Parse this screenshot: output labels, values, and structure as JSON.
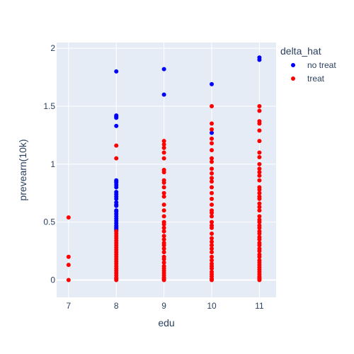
{
  "chart_data": {
    "type": "scatter",
    "title": "",
    "xlabel": "edu",
    "ylabel": "prevearn(10k)",
    "xlim": [
      6.75,
      11.35
    ],
    "ylim": [
      -0.15,
      2.05
    ],
    "x_ticks": [
      "7",
      "8",
      "9",
      "10",
      "11"
    ],
    "y_ticks": [
      "0",
      "0.5",
      "1",
      "1.5",
      "2"
    ],
    "grid": true,
    "legend": {
      "title": "delta_hat",
      "placement": "top-right outside"
    },
    "series": [
      {
        "name": "no treat",
        "color": "#0000ff",
        "x": [
          8,
          8,
          8,
          8,
          8,
          8,
          8,
          8,
          8,
          8,
          8,
          8,
          8,
          8,
          8,
          8,
          8,
          8,
          8,
          8,
          8,
          8,
          8,
          8,
          8,
          8,
          8,
          8,
          8,
          9,
          9,
          10,
          10,
          11,
          11
        ],
        "y": [
          1.8,
          1.42,
          1.41,
          1.4,
          1.33,
          0.86,
          0.85,
          0.84,
          0.82,
          0.8,
          0.76,
          0.74,
          0.72,
          0.7,
          0.67,
          0.65,
          0.64,
          0.6,
          0.59,
          0.57,
          0.55,
          0.53,
          0.51,
          0.49,
          0.47,
          0.46,
          0.45,
          0.44,
          0.43,
          1.82,
          1.6,
          1.69,
          1.27,
          1.92,
          1.9
        ]
      },
      {
        "name": "treat",
        "color": "#ff0000",
        "x": [
          7,
          7,
          7,
          7,
          8,
          8,
          8,
          8,
          8,
          8,
          8,
          8,
          8,
          8,
          8,
          8,
          8,
          8,
          8,
          8,
          8,
          8,
          8,
          8,
          8,
          8,
          8,
          8,
          8,
          9,
          9,
          9,
          9,
          9,
          9,
          9,
          9,
          9,
          9,
          9,
          9,
          9,
          9,
          9,
          9,
          9,
          9,
          9,
          9,
          9,
          9,
          9,
          9,
          9,
          9,
          9,
          9,
          9,
          9,
          9,
          9,
          9,
          9,
          9,
          9,
          10,
          10,
          10,
          10,
          10,
          10,
          10,
          10,
          10,
          10,
          10,
          10,
          10,
          10,
          10,
          10,
          10,
          10,
          10,
          10,
          10,
          10,
          10,
          10,
          10,
          10,
          10,
          10,
          10,
          10,
          10,
          10,
          10,
          10,
          10,
          10,
          10,
          10,
          11,
          11,
          11,
          11,
          11,
          11,
          11,
          11,
          11,
          11,
          11,
          11,
          11,
          11,
          11,
          11,
          11,
          11,
          11,
          11,
          11,
          11,
          11,
          11,
          11,
          11,
          11,
          11,
          11,
          11,
          11,
          11,
          11,
          11,
          11,
          11,
          11,
          11,
          11,
          11,
          11,
          11,
          11,
          11,
          11,
          11,
          11
        ],
        "y": [
          0.54,
          0.2,
          0.13,
          0.0,
          1.16,
          1.05,
          0.42,
          0.4,
          0.38,
          0.36,
          0.34,
          0.32,
          0.3,
          0.28,
          0.26,
          0.24,
          0.22,
          0.2,
          0.18,
          0.16,
          0.14,
          0.12,
          0.1,
          0.08,
          0.06,
          0.04,
          0.02,
          0.01,
          0.0,
          1.2,
          1.17,
          1.14,
          1.1,
          1.05,
          0.95,
          0.93,
          0.86,
          0.84,
          0.8,
          0.75,
          0.72,
          0.65,
          0.6,
          0.55,
          0.5,
          0.48,
          0.45,
          0.42,
          0.38,
          0.35,
          0.32,
          0.3,
          0.27,
          0.24,
          0.2,
          0.18,
          0.15,
          0.12,
          0.1,
          0.08,
          0.06,
          0.04,
          0.02,
          0.01,
          0.0,
          1.5,
          1.35,
          1.3,
          1.22,
          1.18,
          1.12,
          1.05,
          1.02,
          0.96,
          0.92,
          0.88,
          0.85,
          0.8,
          0.75,
          0.7,
          0.65,
          0.6,
          0.58,
          0.55,
          0.5,
          0.47,
          0.45,
          0.4,
          0.36,
          0.33,
          0.3,
          0.27,
          0.24,
          0.2,
          0.17,
          0.14,
          0.12,
          0.1,
          0.07,
          0.05,
          0.03,
          0.01,
          0.0,
          1.5,
          1.46,
          1.37,
          1.35,
          1.29,
          1.2,
          1.1,
          1.06,
          1.0,
          0.96,
          0.93,
          0.9,
          0.86,
          0.8,
          0.78,
          0.75,
          0.72,
          0.7,
          0.66,
          0.63,
          0.6,
          0.55,
          0.52,
          0.5,
          0.47,
          0.45,
          0.42,
          0.4,
          0.37,
          0.35,
          0.32,
          0.3,
          0.27,
          0.25,
          0.22,
          0.2,
          0.17,
          0.15,
          0.13,
          0.11,
          0.09,
          0.07,
          0.05,
          0.03,
          0.02,
          0.01,
          0.0
        ]
      }
    ]
  }
}
